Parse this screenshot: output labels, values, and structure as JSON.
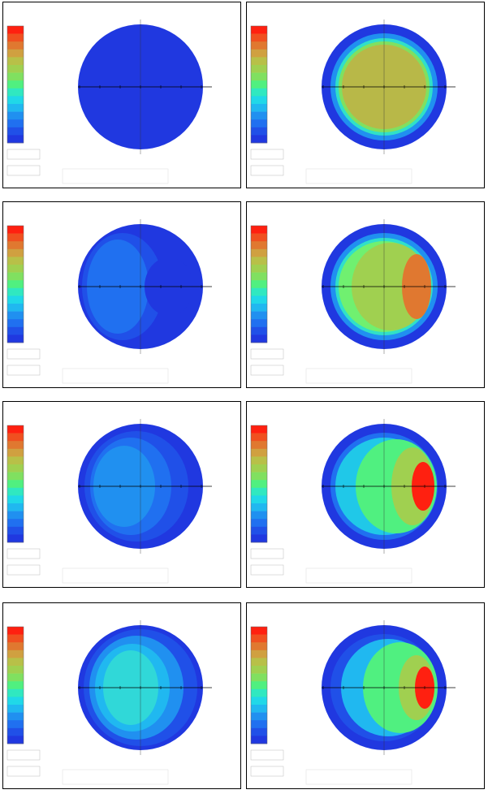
{
  "legend_colors": [
    "#ff2010",
    "#f05020",
    "#e07830",
    "#d0a040",
    "#b8c048",
    "#a0d050",
    "#80e060",
    "#50f080",
    "#30e8c0",
    "#20d8e8",
    "#20b8f0",
    "#2090f0",
    "#2070f0",
    "#2050e8",
    "#2038e0"
  ]
}
